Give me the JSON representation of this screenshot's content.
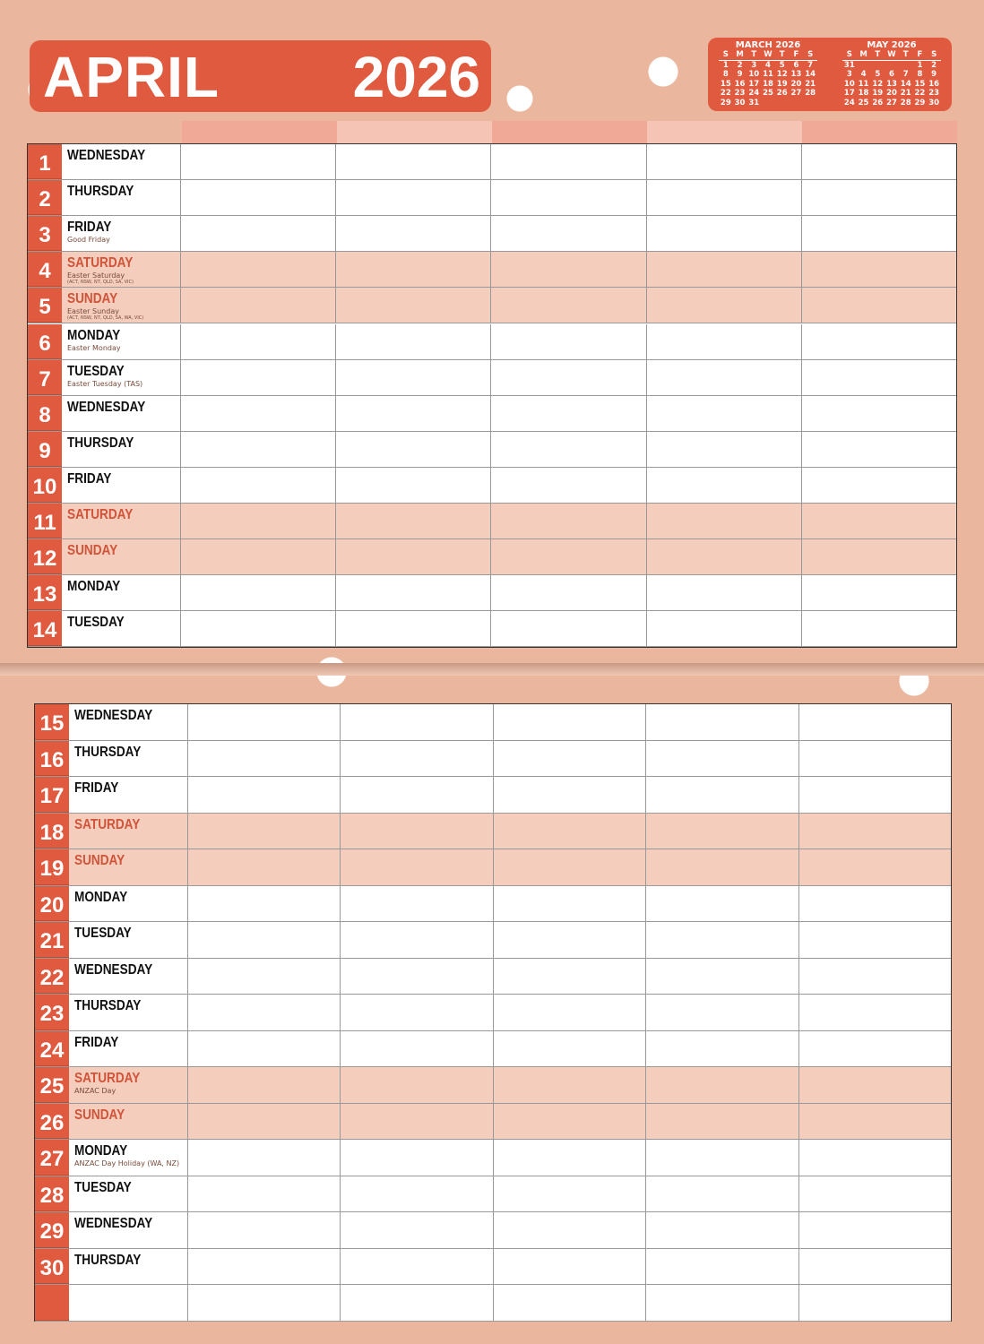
{
  "header": {
    "month": "APRIL",
    "year": "2026"
  },
  "mini_calendars": [
    {
      "title": "MARCH 2026",
      "dow": [
        "S",
        "M",
        "T",
        "W",
        "T",
        "F",
        "S"
      ],
      "days": [
        "1",
        "2",
        "3",
        "4",
        "5",
        "6",
        "7",
        "8",
        "9",
        "10",
        "11",
        "12",
        "13",
        "14",
        "15",
        "16",
        "17",
        "18",
        "19",
        "20",
        "21",
        "22",
        "23",
        "24",
        "25",
        "26",
        "27",
        "28",
        "29",
        "30",
        "31"
      ],
      "offset": 0
    },
    {
      "title": "MAY 2026",
      "dow": [
        "S",
        "M",
        "T",
        "W",
        "T",
        "F",
        "S"
      ],
      "days": [
        "31",
        "",
        "",
        "",
        "",
        "1",
        "2",
        "3",
        "4",
        "5",
        "6",
        "7",
        "8",
        "9",
        "10",
        "11",
        "12",
        "13",
        "14",
        "15",
        "16",
        "17",
        "18",
        "19",
        "20",
        "21",
        "22",
        "23",
        "24",
        "25",
        "26",
        "27",
        "28",
        "29",
        "30"
      ],
      "offset": 0
    }
  ],
  "column_header_colors": [
    "#f0a996",
    "#f6c4b4",
    "#f0a996",
    "#f6c4b4",
    "#f0a996"
  ],
  "colors": {
    "accent": "#e05a3f",
    "weekend_row": "#f4cdbd",
    "background": "#eab79e"
  },
  "top_days": [
    {
      "n": "1",
      "day": "WEDNESDAY"
    },
    {
      "n": "2",
      "day": "THURSDAY"
    },
    {
      "n": "3",
      "day": "FRIDAY",
      "holiday": "Good Friday"
    },
    {
      "n": "4",
      "day": "SATURDAY",
      "weekend": true,
      "holiday": "Easter Saturday",
      "regions": "(ACT, NSW, NT, QLD, SA, VIC)"
    },
    {
      "n": "5",
      "day": "SUNDAY",
      "weekend": true,
      "holiday": "Easter Sunday",
      "regions": "(ACT, NSW, NT, QLD, SA, WA, VIC)"
    },
    {
      "n": "6",
      "day": "MONDAY",
      "holiday": "Easter Monday"
    },
    {
      "n": "7",
      "day": "TUESDAY",
      "holiday": "Easter Tuesday (TAS)"
    },
    {
      "n": "8",
      "day": "WEDNESDAY"
    },
    {
      "n": "9",
      "day": "THURSDAY"
    },
    {
      "n": "10",
      "day": "FRIDAY"
    },
    {
      "n": "11",
      "day": "SATURDAY",
      "weekend": true
    },
    {
      "n": "12",
      "day": "SUNDAY",
      "weekend": true
    },
    {
      "n": "13",
      "day": "MONDAY"
    },
    {
      "n": "14",
      "day": "TUESDAY"
    }
  ],
  "bottom_days": [
    {
      "n": "15",
      "day": "WEDNESDAY"
    },
    {
      "n": "16",
      "day": "THURSDAY"
    },
    {
      "n": "17",
      "day": "FRIDAY"
    },
    {
      "n": "18",
      "day": "SATURDAY",
      "weekend": true
    },
    {
      "n": "19",
      "day": "SUNDAY",
      "weekend": true
    },
    {
      "n": "20",
      "day": "MONDAY"
    },
    {
      "n": "21",
      "day": "TUESDAY"
    },
    {
      "n": "22",
      "day": "WEDNESDAY"
    },
    {
      "n": "23",
      "day": "THURSDAY"
    },
    {
      "n": "24",
      "day": "FRIDAY"
    },
    {
      "n": "25",
      "day": "SATURDAY",
      "weekend": true,
      "holiday": "ANZAC Day"
    },
    {
      "n": "26",
      "day": "SUNDAY",
      "weekend": true
    },
    {
      "n": "27",
      "day": "MONDAY",
      "holiday": "ANZAC Day Holiday (WA, NZ)"
    },
    {
      "n": "28",
      "day": "TUESDAY"
    },
    {
      "n": "29",
      "day": "WEDNESDAY"
    },
    {
      "n": "30",
      "day": "THURSDAY"
    },
    {
      "n": "",
      "day": ""
    }
  ]
}
